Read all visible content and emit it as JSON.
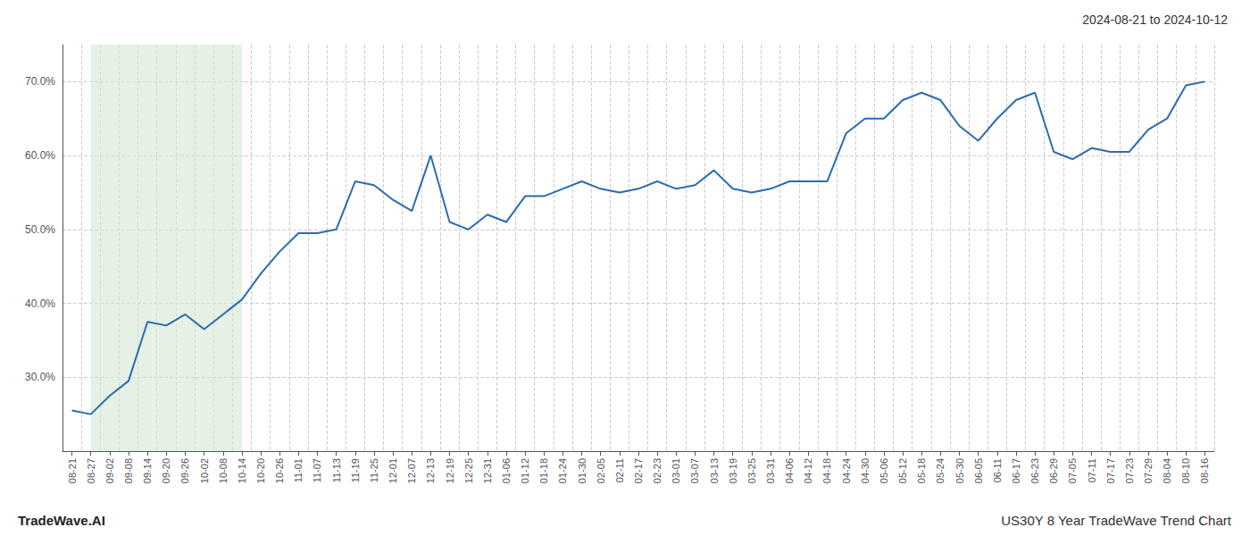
{
  "chart_data": {
    "type": "line",
    "title": "2024-08-21 to 2024-10-12",
    "annotations": [
      "TradeWave.AI",
      "US30Y 8 Year TradeWave Trend Chart"
    ],
    "categories": [
      "08-21",
      "08-27",
      "09-02",
      "09-08",
      "09-14",
      "09-20",
      "09-26",
      "10-02",
      "10-08",
      "10-14",
      "10-20",
      "10-26",
      "11-01",
      "11-07",
      "11-13",
      "11-19",
      "11-25",
      "12-01",
      "12-07",
      "12-13",
      "12-19",
      "12-25",
      "12-31",
      "01-06",
      "01-12",
      "01-18",
      "01-24",
      "01-30",
      "02-05",
      "02-11",
      "02-17",
      "02-23",
      "03-01",
      "03-07",
      "03-13",
      "03-19",
      "03-25",
      "03-31",
      "04-06",
      "04-12",
      "04-18",
      "04-24",
      "04-30",
      "05-06",
      "05-12",
      "05-18",
      "05-24",
      "05-30",
      "06-05",
      "06-11",
      "06-17",
      "06-23",
      "06-29",
      "07-05",
      "07-11",
      "07-17",
      "07-23",
      "07-29",
      "08-04",
      "08-10",
      "08-16"
    ],
    "values": [
      25.5,
      25.0,
      27.5,
      29.5,
      37.5,
      37.0,
      38.5,
      36.5,
      38.5,
      40.5,
      44.0,
      47.0,
      49.5,
      49.5,
      50.0,
      56.5,
      56.0,
      54.0,
      52.5,
      60.0,
      51.0,
      50.0,
      52.0,
      51.0,
      54.5,
      54.5,
      55.5,
      56.5,
      55.5,
      55.0,
      55.5,
      56.5,
      55.5,
      56.0,
      58.0,
      55.5,
      55.0,
      55.5,
      56.5,
      56.5,
      56.5,
      63.0,
      65.0,
      65.0,
      67.5,
      68.5,
      67.5,
      64.0,
      62.0,
      65.0,
      67.5,
      68.5,
      60.5,
      59.5,
      61.0,
      60.5,
      60.5,
      63.5,
      65.0,
      69.5,
      70.0
    ],
    "color": "#2b6cb0",
    "highlight": {
      "start": "08-27",
      "end": "10-14",
      "color": "#d6ead6"
    },
    "ylim": [
      20.0,
      75.0
    ],
    "yticks": [
      {
        "value": 30.0,
        "label": "30.0%"
      },
      {
        "value": 40.0,
        "label": "40.0%"
      },
      {
        "value": 50.0,
        "label": "50.0%"
      },
      {
        "value": 60.0,
        "label": "60.0%"
      },
      {
        "value": 70.0,
        "label": "70.0%"
      }
    ],
    "grid": true
  }
}
